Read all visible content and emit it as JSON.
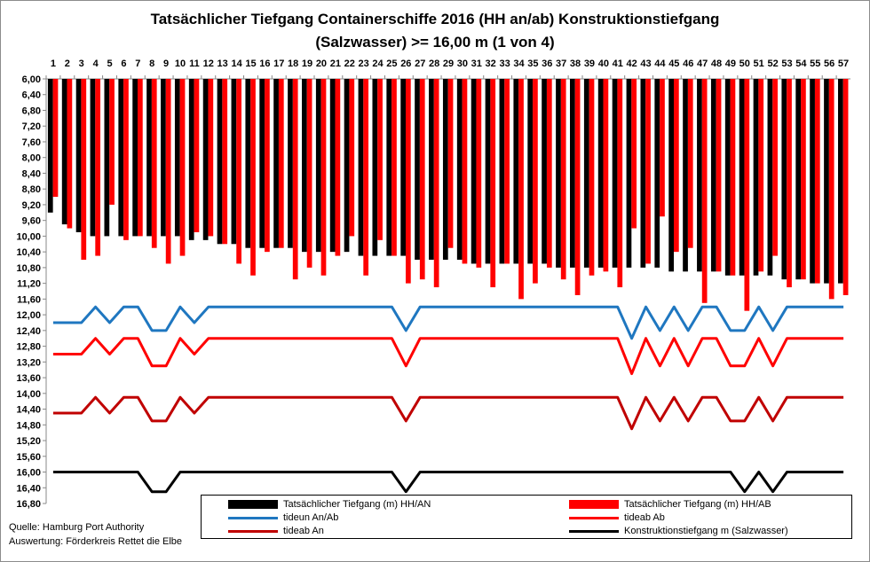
{
  "title_line1": "Tatsächlicher Tiefgang Containerschiffe 2016 (HH an/ab) Konstruktionstiefgang",
  "title_line2": "(Salzwasser) >= 16,00 m (1 von 4)",
  "source_line1": "Quelle: Hamburg Port Authority",
  "source_line2": "Auswertung: Förderkreis Rettet die Elbe",
  "colors": {
    "tiefgang_an": "#000000",
    "tiefgang_ab": "#ff0000",
    "tideun": "#1f77c0",
    "tideab_ab": "#ff0000",
    "tideab_an": "#c00000",
    "konstruktion": "#000000"
  },
  "chart_data": {
    "type": "bar",
    "categories": [
      "1",
      "2",
      "3",
      "4",
      "5",
      "6",
      "7",
      "8",
      "9",
      "10",
      "11",
      "12",
      "13",
      "14",
      "15",
      "16",
      "17",
      "18",
      "19",
      "20",
      "21",
      "22",
      "23",
      "24",
      "25",
      "26",
      "27",
      "28",
      "29",
      "30",
      "31",
      "32",
      "33",
      "34",
      "35",
      "36",
      "37",
      "38",
      "39",
      "40",
      "41",
      "42",
      "43",
      "44",
      "45",
      "46",
      "47",
      "48",
      "49",
      "50",
      "51",
      "52",
      "53",
      "54",
      "55",
      "56",
      "57"
    ],
    "yticks": [
      "6,00",
      "6,40",
      "6,80",
      "7,20",
      "7,60",
      "8,00",
      "8,40",
      "8,80",
      "9,20",
      "9,60",
      "10,00",
      "10,40",
      "10,80",
      "11,20",
      "11,60",
      "12,00",
      "12,40",
      "12,80",
      "13,20",
      "13,60",
      "14,00",
      "14,40",
      "14,80",
      "15,20",
      "15,60",
      "16,00",
      "16,40",
      "16,80"
    ],
    "ylim": [
      6.0,
      16.8
    ],
    "y_inverted": true,
    "legend": [
      "Tatsächlicher Tiefgang (m) HH/AN",
      "Tatsächlicher Tiefgang (m) HH/AB",
      "tideun An/Ab",
      "tideab Ab",
      "tideab An",
      "Konstruktionstiefgang  m (Salzwasser)"
    ],
    "series": [
      {
        "name": "Tatsächlicher Tiefgang (m) HH/AN",
        "kind": "bar",
        "values": [
          9.4,
          9.7,
          9.9,
          10.0,
          10.0,
          10.0,
          10.0,
          10.0,
          10.0,
          10.0,
          10.1,
          10.1,
          10.2,
          10.2,
          10.3,
          10.3,
          10.3,
          10.3,
          10.4,
          10.4,
          10.4,
          10.4,
          10.5,
          10.5,
          10.5,
          10.5,
          10.6,
          10.6,
          10.6,
          10.6,
          10.7,
          10.7,
          10.7,
          10.7,
          10.7,
          10.7,
          10.8,
          10.8,
          10.8,
          10.8,
          10.8,
          10.8,
          10.8,
          10.8,
          10.9,
          10.9,
          10.9,
          10.9,
          11.0,
          11.0,
          11.0,
          11.0,
          11.1,
          11.1,
          11.2,
          11.2,
          11.2
        ]
      },
      {
        "name": "Tatsächlicher Tiefgang (m) HH/AB",
        "kind": "bar",
        "values": [
          9.0,
          9.8,
          10.6,
          10.5,
          9.2,
          10.1,
          10.0,
          10.3,
          10.7,
          10.5,
          9.9,
          10.0,
          10.2,
          10.7,
          11.0,
          10.4,
          10.3,
          11.1,
          10.8,
          11.0,
          10.5,
          10.0,
          11.0,
          10.1,
          10.5,
          11.2,
          11.1,
          11.3,
          10.3,
          10.7,
          10.8,
          11.3,
          10.7,
          11.6,
          11.2,
          10.8,
          11.1,
          11.5,
          11.0,
          10.9,
          11.3,
          9.8,
          10.7,
          9.5,
          10.4,
          10.3,
          11.7,
          10.9,
          11.0,
          11.9,
          10.9,
          10.5,
          11.3,
          11.1,
          11.2,
          11.6,
          11.5
        ]
      },
      {
        "name": "tideun An/Ab",
        "kind": "line",
        "values": [
          12.2,
          12.2,
          12.2,
          11.8,
          12.2,
          11.8,
          11.8,
          12.4,
          12.4,
          11.8,
          12.2,
          11.8,
          11.8,
          11.8,
          11.8,
          11.8,
          11.8,
          11.8,
          11.8,
          11.8,
          11.8,
          11.8,
          11.8,
          11.8,
          11.8,
          12.4,
          11.8,
          11.8,
          11.8,
          11.8,
          11.8,
          11.8,
          11.8,
          11.8,
          11.8,
          11.8,
          11.8,
          11.8,
          11.8,
          11.8,
          11.8,
          12.6,
          11.8,
          12.4,
          11.8,
          12.4,
          11.8,
          11.8,
          12.4,
          12.4,
          11.8,
          12.4,
          11.8,
          11.8,
          11.8,
          11.8,
          11.8
        ]
      },
      {
        "name": "tideab Ab",
        "kind": "line",
        "values": [
          13.0,
          13.0,
          13.0,
          12.6,
          13.0,
          12.6,
          12.6,
          13.3,
          13.3,
          12.6,
          13.0,
          12.6,
          12.6,
          12.6,
          12.6,
          12.6,
          12.6,
          12.6,
          12.6,
          12.6,
          12.6,
          12.6,
          12.6,
          12.6,
          12.6,
          13.3,
          12.6,
          12.6,
          12.6,
          12.6,
          12.6,
          12.6,
          12.6,
          12.6,
          12.6,
          12.6,
          12.6,
          12.6,
          12.6,
          12.6,
          12.6,
          13.5,
          12.6,
          13.3,
          12.6,
          13.3,
          12.6,
          12.6,
          13.3,
          13.3,
          12.6,
          13.3,
          12.6,
          12.6,
          12.6,
          12.6,
          12.6
        ]
      },
      {
        "name": "tideab An",
        "kind": "line",
        "values": [
          14.5,
          14.5,
          14.5,
          14.1,
          14.5,
          14.1,
          14.1,
          14.7,
          14.7,
          14.1,
          14.5,
          14.1,
          14.1,
          14.1,
          14.1,
          14.1,
          14.1,
          14.1,
          14.1,
          14.1,
          14.1,
          14.1,
          14.1,
          14.1,
          14.1,
          14.7,
          14.1,
          14.1,
          14.1,
          14.1,
          14.1,
          14.1,
          14.1,
          14.1,
          14.1,
          14.1,
          14.1,
          14.1,
          14.1,
          14.1,
          14.1,
          14.9,
          14.1,
          14.7,
          14.1,
          14.7,
          14.1,
          14.1,
          14.7,
          14.7,
          14.1,
          14.7,
          14.1,
          14.1,
          14.1,
          14.1,
          14.1
        ]
      },
      {
        "name": "Konstruktionstiefgang  m (Salzwasser)",
        "kind": "line",
        "values": [
          16.0,
          16.0,
          16.0,
          16.0,
          16.0,
          16.0,
          16.0,
          16.5,
          16.5,
          16.0,
          16.0,
          16.0,
          16.0,
          16.0,
          16.0,
          16.0,
          16.0,
          16.0,
          16.0,
          16.0,
          16.0,
          16.0,
          16.0,
          16.0,
          16.0,
          16.5,
          16.0,
          16.0,
          16.0,
          16.0,
          16.0,
          16.0,
          16.0,
          16.0,
          16.0,
          16.0,
          16.0,
          16.0,
          16.0,
          16.0,
          16.0,
          16.0,
          16.0,
          16.0,
          16.0,
          16.0,
          16.0,
          16.0,
          16.0,
          16.5,
          16.0,
          16.5,
          16.0,
          16.0,
          16.0,
          16.0,
          16.0
        ]
      }
    ]
  }
}
